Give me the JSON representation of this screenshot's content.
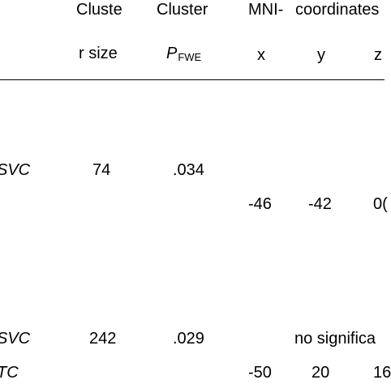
{
  "header": {
    "cluster_size_line1": "Cluste",
    "cluster_size_line2": "r size",
    "cluster_p_line1": "Cluster",
    "cluster_p_symbol": "P",
    "cluster_p_subscript": "FWE",
    "mni_label": "MNI-",
    "coordinates_label": "coordinates",
    "x_label": "x",
    "y_label": "y",
    "z_label": "z"
  },
  "rows": [
    {
      "method": "SVC",
      "cluster_size": "74",
      "cluster_pfwe": ".034",
      "x": "-46",
      "y": "-42",
      "z": "0("
    },
    {
      "method": "SVC",
      "cluster_size": "242",
      "cluster_pfwe": ".029",
      "note": "no significa",
      "x": "-50",
      "y": "20",
      "z": "16",
      "method_partial": "TC"
    }
  ]
}
